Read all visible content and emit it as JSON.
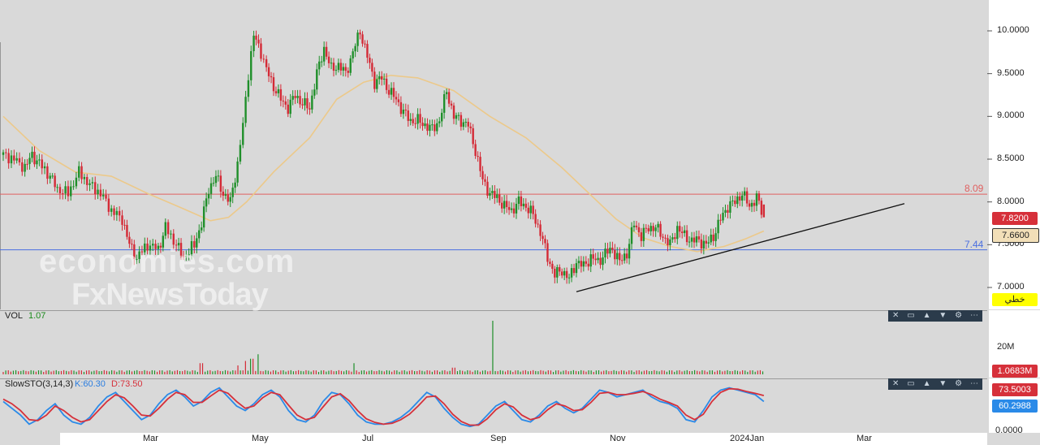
{
  "chart_data": {
    "type": "candlestick",
    "price_axis": {
      "ticks": [
        "10.0000",
        "9.5000",
        "9.0000",
        "8.5000",
        "8.0000",
        "7.5000",
        "7.0000"
      ],
      "values": [
        10.0,
        9.5,
        9.0,
        8.5,
        8.0,
        7.5,
        7.0
      ],
      "ylim": [
        6.75,
        10.35
      ]
    },
    "x_axis_labels": [
      "Mar",
      "May",
      "Jul",
      "Sep",
      "Nov",
      "2024Jan",
      "Mar"
    ],
    "horizontal_lines": [
      {
        "label": "8.09",
        "value": 8.09,
        "color": "#e06060"
      },
      {
        "label": "7.44",
        "value": 7.44,
        "color": "#4a6fe0"
      }
    ],
    "last_price": "7.8200",
    "ma_value": "7.6600",
    "line_type_label": "خطي",
    "price_series": [
      {
        "t": 0,
        "c": 8.55
      },
      {
        "t": 6,
        "c": 8.5
      },
      {
        "t": 12,
        "c": 8.4
      },
      {
        "t": 16,
        "c": 8.55
      },
      {
        "t": 20,
        "c": 8.45
      },
      {
        "t": 26,
        "c": 8.3
      },
      {
        "t": 30,
        "c": 8.15
      },
      {
        "t": 36,
        "c": 8.1
      },
      {
        "t": 42,
        "c": 8.35
      },
      {
        "t": 48,
        "c": 8.2
      },
      {
        "t": 54,
        "c": 8.1
      },
      {
        "t": 60,
        "c": 7.9
      },
      {
        "t": 66,
        "c": 7.8
      },
      {
        "t": 70,
        "c": 7.5
      },
      {
        "t": 74,
        "c": 7.35
      },
      {
        "t": 80,
        "c": 7.5
      },
      {
        "t": 86,
        "c": 7.45
      },
      {
        "t": 90,
        "c": 7.7
      },
      {
        "t": 96,
        "c": 7.5
      },
      {
        "t": 100,
        "c": 7.35
      },
      {
        "t": 106,
        "c": 7.5
      },
      {
        "t": 110,
        "c": 7.75
      },
      {
        "t": 114,
        "c": 8.15
      },
      {
        "t": 118,
        "c": 8.3
      },
      {
        "t": 122,
        "c": 8.1
      },
      {
        "t": 126,
        "c": 8.0
      },
      {
        "t": 130,
        "c": 8.45
      },
      {
        "t": 133,
        "c": 8.9
      },
      {
        "t": 136,
        "c": 9.5
      },
      {
        "t": 139,
        "c": 9.95
      },
      {
        "t": 143,
        "c": 9.75
      },
      {
        "t": 146,
        "c": 9.55
      },
      {
        "t": 150,
        "c": 9.35
      },
      {
        "t": 154,
        "c": 9.2
      },
      {
        "t": 158,
        "c": 9.1
      },
      {
        "t": 162,
        "c": 9.25
      },
      {
        "t": 166,
        "c": 9.15
      },
      {
        "t": 170,
        "c": 9.1
      },
      {
        "t": 174,
        "c": 9.5
      },
      {
        "t": 178,
        "c": 9.8
      },
      {
        "t": 182,
        "c": 9.55
      },
      {
        "t": 186,
        "c": 9.6
      },
      {
        "t": 190,
        "c": 9.5
      },
      {
        "t": 194,
        "c": 9.75
      },
      {
        "t": 198,
        "c": 10.0
      },
      {
        "t": 202,
        "c": 9.7
      },
      {
        "t": 206,
        "c": 9.4
      },
      {
        "t": 210,
        "c": 9.45
      },
      {
        "t": 214,
        "c": 9.3
      },
      {
        "t": 218,
        "c": 9.2
      },
      {
        "t": 222,
        "c": 9.05
      },
      {
        "t": 226,
        "c": 8.95
      },
      {
        "t": 230,
        "c": 8.95
      },
      {
        "t": 234,
        "c": 8.9
      },
      {
        "t": 238,
        "c": 8.85
      },
      {
        "t": 242,
        "c": 8.95
      },
      {
        "t": 246,
        "c": 9.3
      },
      {
        "t": 250,
        "c": 9.0
      },
      {
        "t": 254,
        "c": 8.95
      },
      {
        "t": 258,
        "c": 8.9
      },
      {
        "t": 262,
        "c": 8.6
      },
      {
        "t": 266,
        "c": 8.25
      },
      {
        "t": 270,
        "c": 8.1
      },
      {
        "t": 274,
        "c": 8.05
      },
      {
        "t": 278,
        "c": 7.95
      },
      {
        "t": 282,
        "c": 7.9
      },
      {
        "t": 286,
        "c": 8.0
      },
      {
        "t": 290,
        "c": 7.95
      },
      {
        "t": 294,
        "c": 7.85
      },
      {
        "t": 298,
        "c": 7.65
      },
      {
        "t": 302,
        "c": 7.35
      },
      {
        "t": 306,
        "c": 7.15
      },
      {
        "t": 310,
        "c": 7.2
      },
      {
        "t": 314,
        "c": 7.1
      },
      {
        "t": 318,
        "c": 7.3
      },
      {
        "t": 322,
        "c": 7.25
      },
      {
        "t": 326,
        "c": 7.35
      },
      {
        "t": 330,
        "c": 7.3
      },
      {
        "t": 334,
        "c": 7.4
      },
      {
        "t": 338,
        "c": 7.45
      },
      {
        "t": 342,
        "c": 7.3
      },
      {
        "t": 346,
        "c": 7.4
      },
      {
        "t": 350,
        "c": 7.75
      },
      {
        "t": 354,
        "c": 7.6
      },
      {
        "t": 358,
        "c": 7.7
      },
      {
        "t": 362,
        "c": 7.7
      },
      {
        "t": 366,
        "c": 7.6
      },
      {
        "t": 370,
        "c": 7.5
      },
      {
        "t": 374,
        "c": 7.7
      },
      {
        "t": 378,
        "c": 7.6
      },
      {
        "t": 382,
        "c": 7.55
      },
      {
        "t": 386,
        "c": 7.55
      },
      {
        "t": 390,
        "c": 7.5
      },
      {
        "t": 394,
        "c": 7.6
      },
      {
        "t": 398,
        "c": 7.8
      },
      {
        "t": 402,
        "c": 7.95
      },
      {
        "t": 406,
        "c": 8.0
      },
      {
        "t": 410,
        "c": 8.1
      },
      {
        "t": 414,
        "c": 7.95
      },
      {
        "t": 418,
        "c": 8.05
      },
      {
        "t": 422,
        "c": 7.82
      }
    ],
    "moving_average": [
      {
        "t": 0,
        "v": 9.0
      },
      {
        "t": 20,
        "v": 8.6
      },
      {
        "t": 40,
        "v": 8.35
      },
      {
        "t": 60,
        "v": 8.3
      },
      {
        "t": 80,
        "v": 8.1
      },
      {
        "t": 100,
        "v": 7.92
      },
      {
        "t": 115,
        "v": 7.78
      },
      {
        "t": 125,
        "v": 7.82
      },
      {
        "t": 135,
        "v": 8.0
      },
      {
        "t": 150,
        "v": 8.35
      },
      {
        "t": 170,
        "v": 8.75
      },
      {
        "t": 185,
        "v": 9.2
      },
      {
        "t": 200,
        "v": 9.4
      },
      {
        "t": 215,
        "v": 9.48
      },
      {
        "t": 230,
        "v": 9.45
      },
      {
        "t": 250,
        "v": 9.3
      },
      {
        "t": 270,
        "v": 9.0
      },
      {
        "t": 290,
        "v": 8.75
      },
      {
        "t": 310,
        "v": 8.4
      },
      {
        "t": 325,
        "v": 8.1
      },
      {
        "t": 340,
        "v": 7.8
      },
      {
        "t": 355,
        "v": 7.58
      },
      {
        "t": 370,
        "v": 7.48
      },
      {
        "t": 385,
        "v": 7.42
      },
      {
        "t": 400,
        "v": 7.48
      },
      {
        "t": 412,
        "v": 7.57
      },
      {
        "t": 422,
        "v": 7.66
      }
    ],
    "trendline": [
      {
        "t": 318,
        "v": 6.95
      },
      {
        "t": 500,
        "v": 7.98
      }
    ],
    "volume": {
      "label": "VOL",
      "value": "1.07",
      "tick": "20M",
      "last_value": "1.0683M",
      "spikes": [
        {
          "t": 130,
          "v": 4
        },
        {
          "t": 134,
          "v": 6
        },
        {
          "t": 138,
          "v": 7
        },
        {
          "t": 142,
          "v": 9
        },
        {
          "t": 195,
          "v": 5
        },
        {
          "t": 272,
          "v": 24
        },
        {
          "t": 110,
          "v": 5
        },
        {
          "t": 250,
          "v": 3
        }
      ],
      "base": 1.07
    },
    "stochastic": {
      "label": "SlowSTO(3,14,3)",
      "k_label": "K:60.30",
      "d_label": "D:73.50",
      "d_value": "73.5003",
      "k_value": "60.2988",
      "tick": "0.0000",
      "k_series": [
        60,
        45,
        30,
        10,
        20,
        40,
        55,
        30,
        15,
        10,
        25,
        50,
        70,
        80,
        60,
        40,
        20,
        30,
        55,
        75,
        85,
        70,
        50,
        60,
        80,
        90,
        70,
        50,
        40,
        55,
        75,
        85,
        70,
        40,
        20,
        15,
        30,
        60,
        80,
        75,
        55,
        30,
        15,
        10,
        10,
        15,
        25,
        40,
        60,
        80,
        70,
        45,
        25,
        10,
        5,
        10,
        30,
        50,
        60,
        40,
        20,
        15,
        30,
        50,
        60,
        45,
        35,
        45,
        65,
        85,
        80,
        70,
        75,
        80,
        85,
        70,
        60,
        55,
        45,
        20,
        15,
        40,
        70,
        85,
        90,
        85,
        80,
        75,
        60
      ],
      "d_series": [
        65,
        55,
        40,
        20,
        18,
        30,
        50,
        40,
        25,
        15,
        20,
        40,
        60,
        75,
        68,
        50,
        30,
        28,
        45,
        65,
        80,
        75,
        58,
        58,
        72,
        85,
        78,
        60,
        45,
        50,
        68,
        80,
        75,
        52,
        30,
        20,
        25,
        48,
        70,
        77,
        62,
        40,
        22,
        14,
        10,
        12,
        20,
        32,
        50,
        70,
        72,
        55,
        32,
        16,
        8,
        8,
        22,
        42,
        55,
        48,
        30,
        20,
        25,
        42,
        55,
        50,
        40,
        42,
        58,
        78,
        80,
        75,
        75,
        78,
        82,
        75,
        65,
        58,
        50,
        30,
        20,
        32,
        60,
        80,
        88,
        87,
        82,
        78,
        73
      ]
    },
    "watermark": [
      "economies.com",
      "FxNewsToday"
    ]
  }
}
